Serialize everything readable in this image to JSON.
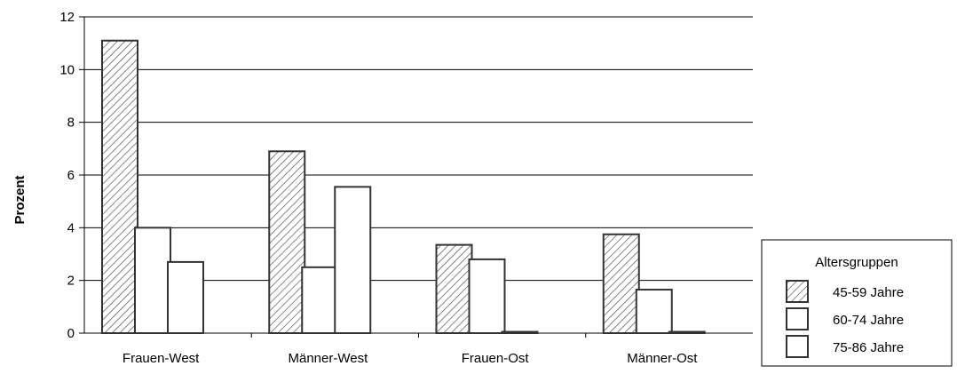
{
  "chart_data": {
    "type": "bar",
    "title": "",
    "xlabel": "",
    "ylabel": "Prozent",
    "ylim": [
      0,
      12
    ],
    "yticks": [
      0,
      2,
      4,
      6,
      8,
      10,
      12
    ],
    "grid": true,
    "legend": {
      "title": "Altersgruppen",
      "placement": "bottom-right"
    },
    "categories": [
      "Frauen-West",
      "Männer-West",
      "Frauen-Ost",
      "Männer-Ost"
    ],
    "series": [
      {
        "name": "45-59 Jahre",
        "pattern": "hatched",
        "values": [
          11.1,
          6.9,
          3.35,
          3.75
        ]
      },
      {
        "name": "60-74 Jahre",
        "pattern": "white",
        "values": [
          4.0,
          2.5,
          2.8,
          1.65
        ]
      },
      {
        "name": "75-86 Jahre",
        "pattern": "white",
        "values": [
          2.7,
          5.55,
          0.05,
          0.05
        ]
      }
    ],
    "colors": {
      "bar_stroke": "#333333",
      "hatch": "#555555",
      "axis": "#000000",
      "grid": "#000000"
    }
  }
}
